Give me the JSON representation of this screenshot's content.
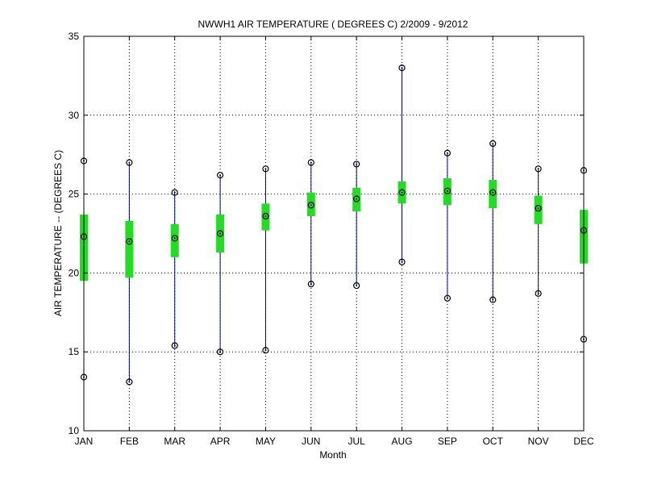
{
  "chart_data": {
    "type": "boxplot",
    "title": "NWWH1  AIR TEMPERATURE ( DEGREES C) 2/2009 - 9/2012",
    "xlabel": "Month",
    "ylabel": "AIR TEMPERATURE -- (DEGREES C)",
    "categories": [
      "JAN",
      "FEB",
      "MAR",
      "APR",
      "MAY",
      "JUN",
      "JUL",
      "AUG",
      "SEP",
      "OCT",
      "NOV",
      "DEC"
    ],
    "ylim": [
      10,
      35
    ],
    "yticks": [
      10,
      15,
      20,
      25,
      30,
      35
    ],
    "grid": true,
    "stats": [
      {
        "min": 13.4,
        "q1": 19.5,
        "median": 22.3,
        "q3": 23.7,
        "max": 27.1
      },
      {
        "min": 13.1,
        "q1": 19.7,
        "median": 22.0,
        "q3": 23.3,
        "max": 27.0
      },
      {
        "min": 15.4,
        "q1": 21.0,
        "median": 22.2,
        "q3": 23.1,
        "max": 25.1
      },
      {
        "min": 15.0,
        "q1": 21.3,
        "median": 22.5,
        "q3": 23.7,
        "max": 26.2
      },
      {
        "min": 15.1,
        "q1": 22.7,
        "median": 23.6,
        "q3": 24.4,
        "max": 26.6
      },
      {
        "min": 19.3,
        "q1": 23.6,
        "median": 24.3,
        "q3": 25.1,
        "max": 27.0
      },
      {
        "min": 19.2,
        "q1": 23.9,
        "median": 24.7,
        "q3": 25.4,
        "max": 26.9
      },
      {
        "min": 20.7,
        "q1": 24.4,
        "median": 25.1,
        "q3": 25.8,
        "max": 33.0
      },
      {
        "min": 18.4,
        "q1": 24.3,
        "median": 25.2,
        "q3": 26.0,
        "max": 27.6
      },
      {
        "min": 18.3,
        "q1": 24.1,
        "median": 25.1,
        "q3": 25.9,
        "max": 28.2
      },
      {
        "min": 18.7,
        "q1": 23.1,
        "median": 24.1,
        "q3": 24.9,
        "max": 26.6
      },
      {
        "min": 15.8,
        "q1": 20.6,
        "median": 22.7,
        "q3": 24.0,
        "max": 26.5
      }
    ],
    "colors": {
      "box": "#22dd22",
      "whisker": "#00008b",
      "marker": "#000000",
      "grid": "#000000",
      "axis": "#000000"
    }
  }
}
